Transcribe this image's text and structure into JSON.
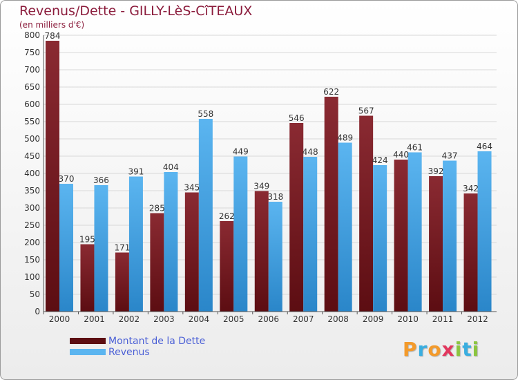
{
  "header": {
    "title": "Revenus/Dette - GILLY-LèS-CîTEAUX",
    "subtitle": "(en milliers d'€)"
  },
  "legend": {
    "debt_label": "Montant de la Dette",
    "revenue_label": "Revenus"
  },
  "brand": {
    "letters": [
      "P",
      "r",
      "o",
      "x",
      "i",
      "t",
      "i"
    ],
    "colors": [
      "#f39a2b",
      "#3aaee0",
      "#f39a2b",
      "#e2375e",
      "#8bc53f",
      "#3aaee0",
      "#8bc53f"
    ]
  },
  "colors": {
    "debt_dark": "#5c0d12",
    "debt_light": "#8a2a32",
    "revenue_dark": "#2a86c9",
    "revenue_light": "#5bb5f0",
    "grid": "#d8d8d8",
    "axis": "#555555"
  },
  "chart_data": {
    "type": "bar",
    "title": "Revenus/Dette - GILLY-LèS-CîTEAUX",
    "ylabel": "(en milliers d'€)",
    "xlabel": "",
    "categories": [
      "2000",
      "2001",
      "2002",
      "2003",
      "2004",
      "2005",
      "2006",
      "2007",
      "2008",
      "2009",
      "2010",
      "2011",
      "2012"
    ],
    "series": [
      {
        "name": "Montant de la Dette",
        "values": [
          784,
          195,
          171,
          285,
          345,
          262,
          349,
          546,
          622,
          567,
          440,
          392,
          342
        ]
      },
      {
        "name": "Revenus",
        "values": [
          370,
          366,
          391,
          404,
          558,
          449,
          318,
          448,
          489,
          424,
          461,
          437,
          464
        ]
      }
    ],
    "ylim": [
      0,
      800
    ],
    "yticks": [
      0,
      50,
      100,
      150,
      200,
      250,
      300,
      350,
      400,
      450,
      500,
      550,
      600,
      650,
      700,
      750,
      800
    ],
    "grid": true,
    "legend_position": "bottom-left"
  }
}
